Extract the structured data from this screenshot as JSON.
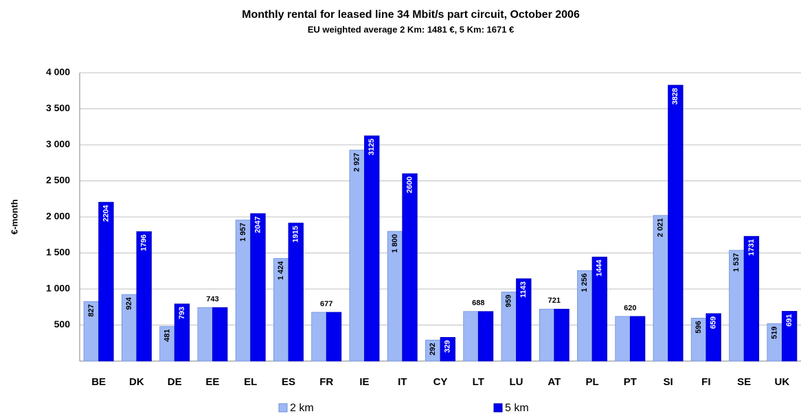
{
  "chart_data": {
    "type": "bar",
    "title": "Monthly rental for leased line 34 Mbit/s part circuit, October 2006",
    "subtitle": "EU weighted average 2 Km: 1481 €, 5 Km: 1671 €",
    "y_label": "€-month",
    "categories": [
      "BE",
      "DK",
      "DE",
      "EE",
      "EL",
      "ES",
      "FR",
      "IE",
      "IT",
      "CY",
      "LT",
      "LU",
      "AT",
      "PL",
      "PT",
      "SI",
      "FI",
      "SE",
      "UK"
    ],
    "series": [
      {
        "name": "2 km",
        "color": "#9db8f5",
        "values": [
          827,
          924,
          481,
          743,
          1957,
          1424,
          677,
          2927,
          1800,
          292,
          688,
          959,
          721,
          1256,
          620,
          2021,
          596,
          1537,
          519
        ],
        "value_labels": [
          "827",
          "924",
          "481",
          "743",
          "1 957",
          "1 424",
          "677",
          "2 927",
          "1 800",
          "292",
          "688",
          "959",
          "721",
          "1 256",
          "620",
          "2 021",
          "596",
          "1 537",
          "519"
        ]
      },
      {
        "name": "5 km",
        "color": "#0000f0",
        "values": [
          2204,
          1796,
          793,
          743,
          2047,
          1915,
          677,
          3125,
          2600,
          329,
          688,
          1143,
          721,
          1444,
          620,
          3828,
          659,
          1731,
          691
        ],
        "value_labels": [
          "2204",
          "1796",
          "793",
          null,
          "2047",
          "1915",
          null,
          "3125",
          "2600",
          "329",
          null,
          "1143",
          null,
          "1444",
          null,
          "3828",
          "659",
          "1731",
          "691"
        ]
      }
    ],
    "ylim": [
      0,
      4000
    ],
    "yticks": [
      {
        "value": 500,
        "label": "500"
      },
      {
        "value": 1000,
        "label": "1 000"
      },
      {
        "value": 1500,
        "label": "1 500"
      },
      {
        "value": 2000,
        "label": "2 000"
      },
      {
        "value": 2500,
        "label": "2 500"
      },
      {
        "value": 3000,
        "label": "3 000"
      },
      {
        "value": 3500,
        "label": "3 500"
      },
      {
        "value": 4000,
        "label": "4 000"
      }
    ],
    "grid": true,
    "legend": "bottom"
  }
}
